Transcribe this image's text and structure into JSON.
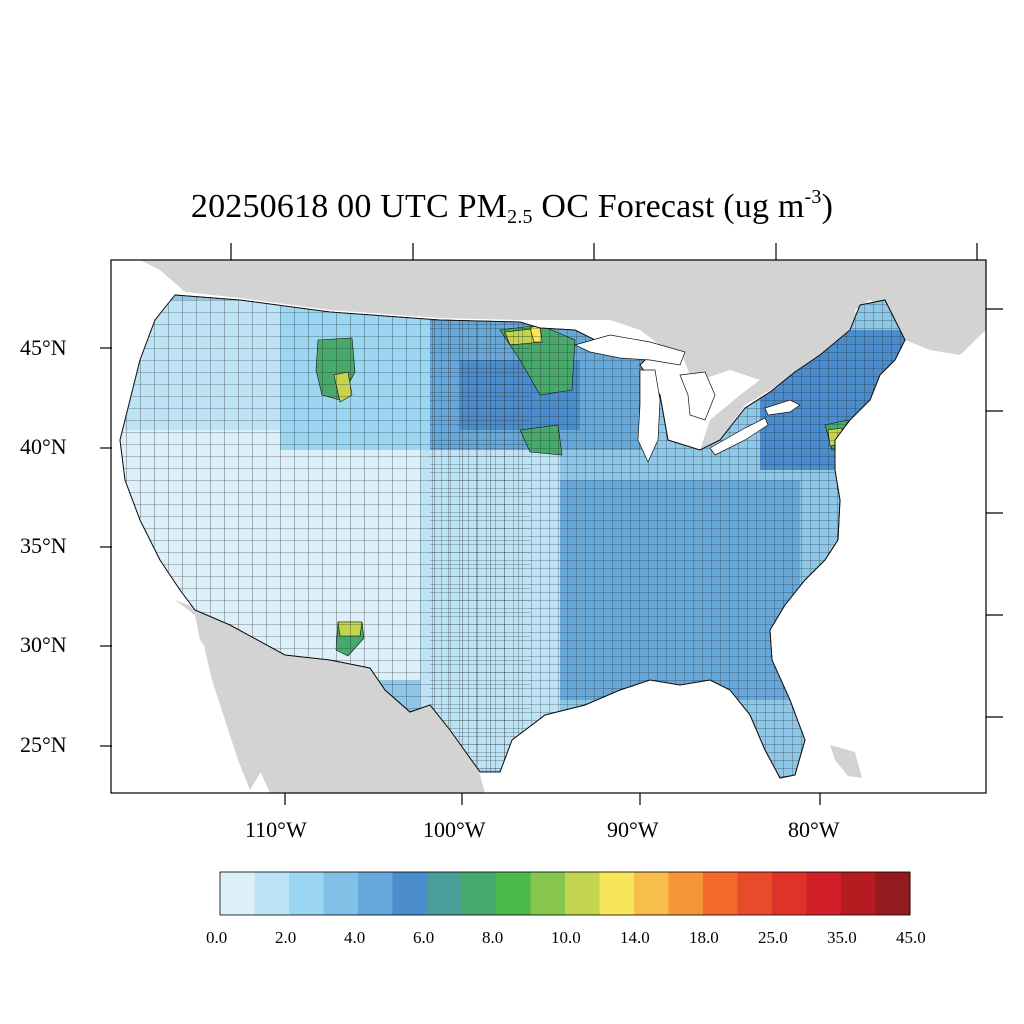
{
  "title": {
    "prefix": "20250618 00 UTC PM",
    "sub": "2.5",
    "middle": " OC Forecast (ug m",
    "sup": "-3",
    "suffix": ")"
  },
  "map": {
    "type": "county choropleth",
    "background_land": "#d3d3d3",
    "water": "#ffffff",
    "lat_labels": [
      "45°N",
      "40°N",
      "35°N",
      "30°N",
      "25°N"
    ],
    "lon_labels": [
      "110°W",
      "100°W",
      "90°W",
      "80°W"
    ],
    "hotspots": [
      {
        "region": "Montana/Wyoming border",
        "level": "8.0-14.0"
      },
      {
        "region": "northern Minnesota",
        "level": "8.0-14.0"
      },
      {
        "region": "eastern Nebraska",
        "level": "8.0-10.0"
      },
      {
        "region": "New Mexico",
        "level": "8.0-14.0"
      },
      {
        "region": "New Jersey / New York",
        "level": "8.0-14.0"
      }
    ]
  },
  "colorbar": {
    "colors": [
      "#dcf0fa",
      "#bde4f6",
      "#9bd7f2",
      "#83c0e6",
      "#67a8da",
      "#4b8ccc",
      "#4a9e9a",
      "#48a96d",
      "#4bb84b",
      "#87c64e",
      "#c3d44f",
      "#f8e55a",
      "#f7be4b",
      "#f7953b",
      "#f26a2b",
      "#e84b2a",
      "#dd332a",
      "#d21f2a",
      "#b71b22",
      "#931a1d"
    ],
    "labels": [
      "0.0",
      "2.0",
      "4.0",
      "6.0",
      "8.0",
      "10.0",
      "14.0",
      "18.0",
      "25.0",
      "35.0",
      "45.0"
    ]
  }
}
